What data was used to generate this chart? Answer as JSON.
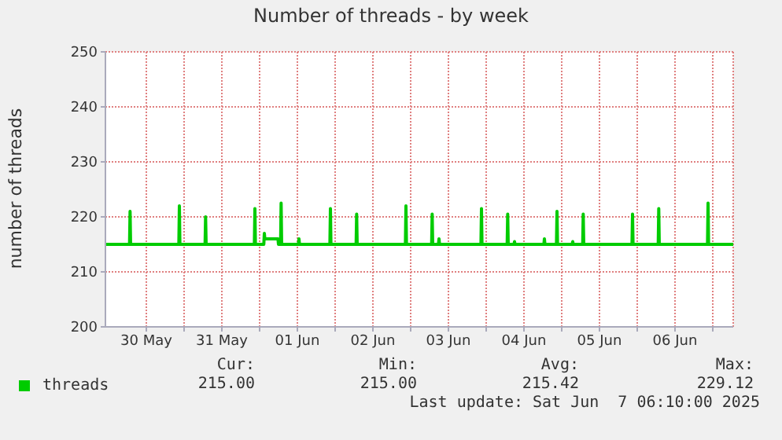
{
  "chart_data": {
    "type": "line",
    "title": "Number of threads - by week",
    "ylabel": "number of threads",
    "xlim": [
      "2025-05-29T23:00",
      "2025-06-07T06:30"
    ],
    "xticks": [
      {
        "value": "2025-05-30T12:00",
        "label": "30 May"
      },
      {
        "value": "2025-05-31T00:00",
        "label": null
      },
      {
        "value": "2025-05-31T12:00",
        "label": "31 May"
      },
      {
        "value": "2025-06-01T00:00",
        "label": null
      },
      {
        "value": "2025-06-01T12:00",
        "label": "01 Jun"
      },
      {
        "value": "2025-06-02T00:00",
        "label": null
      },
      {
        "value": "2025-06-02T12:00",
        "label": "02 Jun"
      },
      {
        "value": "2025-06-03T00:00",
        "label": null
      },
      {
        "value": "2025-06-03T12:00",
        "label": "03 Jun"
      },
      {
        "value": "2025-06-04T00:00",
        "label": null
      },
      {
        "value": "2025-06-04T12:00",
        "label": "04 Jun"
      },
      {
        "value": "2025-06-05T00:00",
        "label": null
      },
      {
        "value": "2025-06-05T12:00",
        "label": "05 Jun"
      },
      {
        "value": "2025-06-06T00:00",
        "label": null
      },
      {
        "value": "2025-06-06T12:00",
        "label": "06 Jun"
      },
      {
        "value": "2025-06-07T00:00",
        "label": null
      }
    ],
    "ylim": [
      200,
      250
    ],
    "yticks": [
      200,
      210,
      220,
      230,
      240,
      250
    ],
    "grid": true,
    "legend": "bottom",
    "series": [
      {
        "name": "threads",
        "color": "#00cc00",
        "x": [
          "2025-05-29T23:00",
          "2025-05-30T06:40",
          "2025-05-30T06:50",
          "2025-05-30T07:00",
          "2025-05-30T22:20",
          "2025-05-30T22:30",
          "2025-05-30T22:40",
          "2025-05-31T06:40",
          "2025-05-31T06:50",
          "2025-05-31T07:00",
          "2025-05-31T22:20",
          "2025-05-31T22:30",
          "2025-05-31T22:40",
          "2025-06-01T01:20",
          "2025-06-01T01:30",
          "2025-06-01T01:40",
          "2025-06-01T05:50",
          "2025-06-01T06:00",
          "2025-06-01T06:40",
          "2025-06-01T06:50",
          "2025-06-01T07:00",
          "2025-06-01T12:20",
          "2025-06-01T12:30",
          "2025-06-01T12:40",
          "2025-06-01T22:20",
          "2025-06-01T22:30",
          "2025-06-01T22:40",
          "2025-06-02T06:40",
          "2025-06-02T06:50",
          "2025-06-02T07:00",
          "2025-06-02T22:20",
          "2025-06-02T22:30",
          "2025-06-02T22:40",
          "2025-06-03T06:40",
          "2025-06-03T06:50",
          "2025-06-03T07:00",
          "2025-06-03T08:50",
          "2025-06-03T09:00",
          "2025-06-03T09:10",
          "2025-06-03T22:20",
          "2025-06-03T22:30",
          "2025-06-03T22:40",
          "2025-06-04T06:40",
          "2025-06-04T06:50",
          "2025-06-04T07:00",
          "2025-06-04T08:50",
          "2025-06-04T09:00",
          "2025-06-04T09:10",
          "2025-06-04T18:20",
          "2025-06-04T18:30",
          "2025-06-04T18:40",
          "2025-06-04T22:20",
          "2025-06-04T22:30",
          "2025-06-04T22:40",
          "2025-06-05T03:20",
          "2025-06-05T03:30",
          "2025-06-05T03:40",
          "2025-06-05T06:40",
          "2025-06-05T06:50",
          "2025-06-05T07:00",
          "2025-06-05T22:20",
          "2025-06-05T22:30",
          "2025-06-05T22:40",
          "2025-06-06T06:40",
          "2025-06-06T06:50",
          "2025-06-06T07:00",
          "2025-06-06T22:20",
          "2025-06-06T22:30",
          "2025-06-06T22:40",
          "2025-06-07T06:30"
        ],
        "values": [
          215,
          215,
          221,
          215,
          215,
          222,
          215,
          215,
          220,
          215,
          215,
          221.5,
          215,
          215,
          217,
          216,
          216,
          215,
          215,
          222.5,
          215,
          215,
          216,
          215,
          215,
          221.5,
          215,
          215,
          220.5,
          215,
          215,
          222,
          215,
          215,
          220.5,
          215,
          215,
          216,
          215,
          215,
          221.5,
          215,
          215,
          220.5,
          215,
          215,
          215.5,
          215,
          215,
          216,
          215,
          215,
          221,
          215,
          215,
          215.5,
          215,
          215,
          220.5,
          215,
          215,
          220.5,
          215,
          215,
          221.5,
          215,
          215,
          222.5,
          215,
          215
        ]
      }
    ],
    "annotations": [
      "Cur:",
      "Min:",
      "Avg:",
      "Max:",
      "215.00",
      "215.00",
      "215.42",
      "229.12",
      "Last update: Sat Jun  7 06:10:00 2025"
    ]
  }
}
